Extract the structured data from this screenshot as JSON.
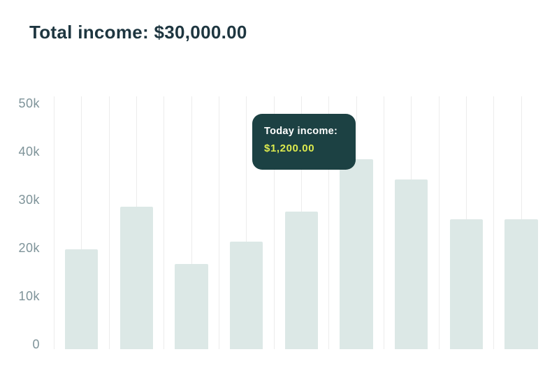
{
  "header": {
    "title": "Total income: $30,000.00"
  },
  "tooltip": {
    "label": "Today income:",
    "value": "$1,200.00"
  },
  "colors": {
    "background": "#ffffff",
    "title_text": "#1e3640",
    "axis_label": "#7e9399",
    "gridline": "#ececec",
    "bar": "#dce8e6",
    "tooltip_bg": "#1c4143",
    "tooltip_label": "#ffffff",
    "tooltip_value": "#dcea4e"
  },
  "chart_data": {
    "type": "bar",
    "title": "Total income: $30,000.00",
    "values": [
      20000,
      28500,
      17000,
      21500,
      27500,
      38000,
      34000,
      26000,
      26000
    ],
    "y_ticks": [
      "50k",
      "40k",
      "30k",
      "20k",
      "10k",
      "0"
    ],
    "ylim": [
      0,
      50000
    ],
    "xlabel": "",
    "ylabel": "",
    "grid": "vertical-only",
    "legend": "none",
    "x_tick_labels": "none",
    "tooltip": {
      "label": "Today income:",
      "value": "$1,200.00",
      "value_number": 1200
    }
  }
}
